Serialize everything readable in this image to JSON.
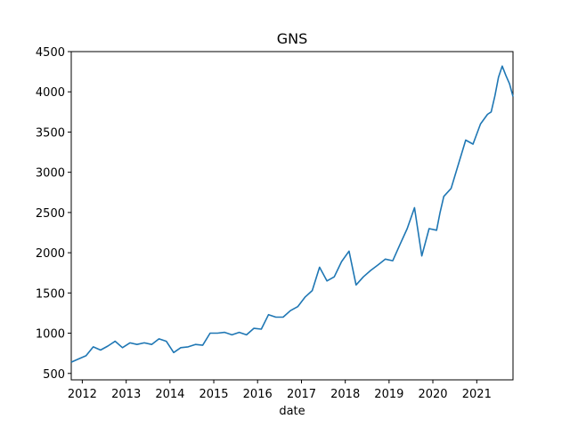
{
  "chart_data": {
    "type": "line",
    "title": "GNS",
    "xlabel": "date",
    "ylabel": "",
    "x_range": [
      "2011-10-01",
      "2021-10-30"
    ],
    "ylim": [
      420,
      4500
    ],
    "x_tick_labels": [
      "2012",
      "2013",
      "2014",
      "2015",
      "2016",
      "2017",
      "2018",
      "2019",
      "2020",
      "2021"
    ],
    "y_ticks": [
      500,
      1000,
      1500,
      2000,
      2500,
      3000,
      3500,
      4000,
      4500
    ],
    "grid": false,
    "legend": "none",
    "series": [
      {
        "color": "#1f77b4",
        "x": [
          "2011-10-01",
          "2011-12-01",
          "2012-02-01",
          "2012-04-01",
          "2012-06-01",
          "2012-08-01",
          "2012-10-01",
          "2012-12-01",
          "2013-02-01",
          "2013-04-01",
          "2013-06-01",
          "2013-08-01",
          "2013-10-01",
          "2013-12-01",
          "2014-02-01",
          "2014-04-01",
          "2014-06-01",
          "2014-08-01",
          "2014-10-01",
          "2014-12-01",
          "2015-02-01",
          "2015-04-01",
          "2015-06-01",
          "2015-08-01",
          "2015-10-01",
          "2015-12-01",
          "2016-02-01",
          "2016-04-01",
          "2016-06-01",
          "2016-08-01",
          "2016-10-01",
          "2016-12-01",
          "2017-02-01",
          "2017-04-01",
          "2017-06-01",
          "2017-08-01",
          "2017-10-01",
          "2017-12-01",
          "2018-02-01",
          "2018-04-01",
          "2018-06-01",
          "2018-08-01",
          "2018-10-01",
          "2018-12-01",
          "2019-02-01",
          "2019-04-01",
          "2019-06-01",
          "2019-08-01",
          "2019-10-01",
          "2019-12-01",
          "2020-02-01",
          "2020-03-01",
          "2020-04-01",
          "2020-06-01",
          "2020-08-01",
          "2020-10-01",
          "2020-12-01",
          "2021-02-01",
          "2021-04-01",
          "2021-05-01",
          "2021-06-01",
          "2021-07-01",
          "2021-08-01",
          "2021-09-01",
          "2021-10-01",
          "2021-10-30"
        ],
        "y": [
          640,
          680,
          720,
          830,
          790,
          840,
          900,
          820,
          880,
          860,
          880,
          860,
          930,
          900,
          760,
          820,
          830,
          860,
          850,
          1000,
          1000,
          1010,
          980,
          1010,
          980,
          1060,
          1050,
          1230,
          1200,
          1200,
          1280,
          1330,
          1450,
          1530,
          1820,
          1650,
          1700,
          1890,
          2020,
          1600,
          1700,
          1780,
          1850,
          1920,
          1900,
          2100,
          2300,
          2560,
          1960,
          2300,
          2280,
          2500,
          2700,
          2800,
          3100,
          3400,
          3350,
          3600,
          3720,
          3750,
          3950,
          4180,
          4320,
          4200,
          4100,
          3940
        ]
      }
    ]
  }
}
